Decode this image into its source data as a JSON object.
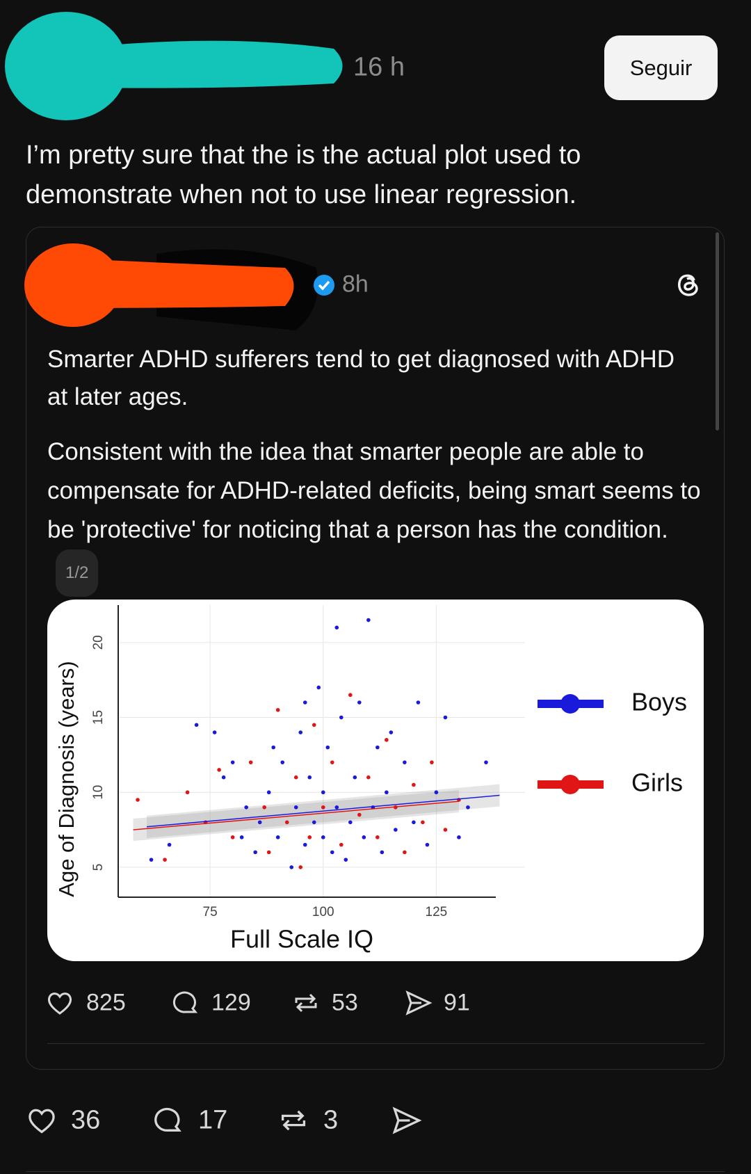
{
  "post": {
    "time": "16 h",
    "follow": "Seguir",
    "text": "I’m pretty sure that the is the actual plot used to demonstrate when not to use linear regression.",
    "stats": {
      "likes": 36,
      "replies": 17,
      "reposts": 3
    }
  },
  "quoted_post": {
    "time": "8h",
    "paragraphs": [
      "Smarter ADHD sufferers tend to get diagnosed with ADHD at later ages.",
      "Consistent with the idea that smarter people are able to compensate for ADHD-related deficits, being smart seems to be 'protective' for noticing that a person has the condition."
    ],
    "page_indicator": "1/2",
    "stats": {
      "likes": 825,
      "replies": 129,
      "reposts": 53,
      "shares": 91
    }
  },
  "chart_data": {
    "type": "scatter",
    "x_label": "Full Scale IQ",
    "y_label": "Age of Diagnosis (years)",
    "xlim": [
      55,
      140
    ],
    "ylim": [
      3,
      22.5
    ],
    "xticks": [
      75,
      100,
      125
    ],
    "yticks": [
      5,
      10,
      15,
      20
    ],
    "grid": true,
    "series": [
      {
        "name": "Boys",
        "color": "#1a1adb",
        "x": [
          62,
          66,
          72,
          76,
          78,
          80,
          83,
          85,
          86,
          88,
          90,
          91,
          93,
          94,
          95,
          96,
          97,
          98,
          99,
          100,
          100,
          101,
          102,
          103,
          104,
          105,
          106,
          107,
          108,
          109,
          110,
          111,
          112,
          113,
          114,
          115,
          116,
          118,
          120,
          121,
          123,
          125,
          127,
          130,
          132,
          136,
          103,
          96,
          89,
          82
        ],
        "values": [
          5.5,
          6.5,
          14.5,
          14,
          11,
          12,
          9,
          6,
          8,
          10,
          7,
          12,
          5,
          9,
          14,
          6.5,
          11,
          8,
          17,
          7,
          10,
          13,
          6,
          9,
          15,
          5.5,
          8,
          11,
          16,
          7,
          21.5,
          9,
          13,
          6,
          10,
          14,
          7.5,
          12,
          8,
          16,
          6.5,
          10,
          15,
          7,
          9,
          12,
          21,
          16,
          13,
          7
        ],
        "fit": {
          "x": [
            61,
            139
          ],
          "y": [
            7.7,
            9.8
          ]
        }
      },
      {
        "name": "Girls",
        "color": "#e01515",
        "x": [
          59,
          65,
          70,
          74,
          77,
          80,
          84,
          87,
          90,
          92,
          94,
          97,
          98,
          100,
          102,
          104,
          106,
          108,
          110,
          112,
          114,
          116,
          118,
          120,
          122,
          124,
          127,
          130,
          95,
          88
        ],
        "values": [
          9.5,
          5.5,
          10,
          8,
          11.5,
          7,
          12,
          9,
          15.5,
          8,
          11,
          7,
          14.5,
          9,
          12,
          6.5,
          16.5,
          8.5,
          11,
          7,
          13.5,
          9,
          6,
          10.5,
          8,
          12,
          7.5,
          9.5,
          5,
          6
        ],
        "fit": {
          "x": [
            58,
            130
          ],
          "y": [
            7.5,
            9.4
          ]
        }
      }
    ]
  }
}
